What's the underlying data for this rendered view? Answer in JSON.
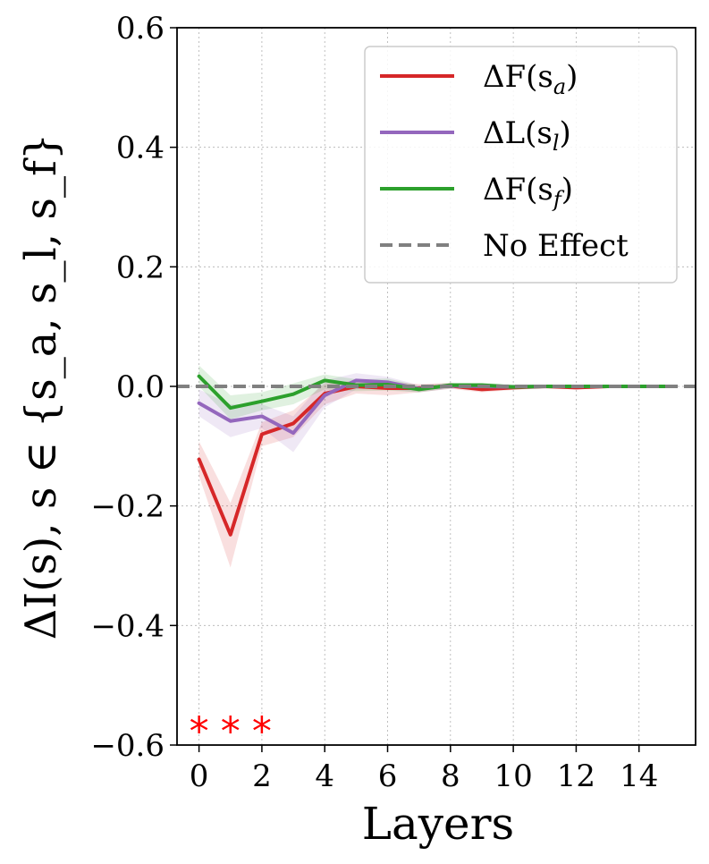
{
  "chart_data": {
    "type": "line",
    "xlabel": "Layers",
    "ylabel": "ΔI(s),  s ∈ {s_a, s_l, s_f}",
    "xlim": [
      -0.7,
      15.8
    ],
    "ylim": [
      -0.6,
      0.6
    ],
    "xticks": [
      0,
      2,
      4,
      6,
      8,
      10,
      12,
      14
    ],
    "yticks": [
      -0.6,
      -0.4,
      -0.2,
      0.0,
      0.2,
      0.4,
      0.6
    ],
    "ytick_labels": [
      "−0.6",
      "−0.4",
      "−0.2",
      "0.0",
      "0.2",
      "0.4",
      "0.6"
    ],
    "grid": true,
    "legend_position": "top-right",
    "x": [
      0,
      1,
      2,
      3,
      4,
      5,
      6,
      7,
      8,
      9,
      10,
      11,
      12,
      13,
      14,
      15
    ],
    "series": [
      {
        "name": "ΔF(s_a)",
        "label_main": "ΔF(s",
        "label_sub": "a",
        "color": "#d62728",
        "values": [
          -0.122,
          -0.248,
          -0.08,
          -0.062,
          -0.012,
          0.0,
          -0.003,
          -0.003,
          0.001,
          -0.005,
          -0.002,
          0.0,
          -0.002,
          0.0,
          0.0,
          0.0
        ],
        "lower": [
          -0.15,
          -0.303,
          -0.1,
          -0.085,
          -0.03,
          -0.012,
          -0.015,
          -0.01,
          -0.004,
          -0.01,
          -0.006,
          -0.003,
          -0.005,
          -0.003,
          -0.003,
          -0.003
        ],
        "upper": [
          -0.092,
          -0.195,
          -0.06,
          -0.04,
          0.005,
          0.01,
          0.008,
          0.004,
          0.006,
          0.0,
          0.002,
          0.003,
          0.001,
          0.003,
          0.003,
          0.003
        ]
      },
      {
        "name": "ΔL(s_l)",
        "label_main": "ΔL(s",
        "label_sub": "l",
        "color": "#9467bd",
        "values": [
          -0.028,
          -0.058,
          -0.05,
          -0.078,
          -0.015,
          0.01,
          0.007,
          -0.004,
          0.001,
          0.0,
          -0.001,
          0.0,
          0.0,
          0.0,
          0.0,
          0.0
        ],
        "lower": [
          -0.05,
          -0.085,
          -0.07,
          -0.11,
          -0.035,
          -0.005,
          -0.005,
          -0.01,
          -0.004,
          -0.004,
          -0.004,
          -0.003,
          -0.003,
          -0.003,
          -0.003,
          -0.003
        ],
        "upper": [
          -0.005,
          -0.03,
          -0.03,
          -0.05,
          0.01,
          0.022,
          0.016,
          0.002,
          0.005,
          0.004,
          0.003,
          0.003,
          0.003,
          0.003,
          0.003,
          0.003
        ]
      },
      {
        "name": "ΔF(s_f)",
        "label_main": "ΔF(s",
        "label_sub": "f",
        "color": "#2ca02c",
        "values": [
          0.017,
          -0.036,
          -0.025,
          -0.013,
          0.01,
          0.002,
          0.003,
          -0.005,
          0.002,
          0.002,
          -0.001,
          0.0,
          0.0,
          0.0,
          0.0,
          0.0
        ],
        "lower": [
          0.0,
          -0.055,
          -0.04,
          -0.03,
          -0.005,
          -0.008,
          -0.007,
          -0.01,
          -0.003,
          -0.002,
          -0.004,
          -0.003,
          -0.003,
          -0.003,
          -0.003,
          -0.003
        ],
        "upper": [
          0.035,
          -0.015,
          -0.01,
          0.005,
          0.02,
          0.012,
          0.013,
          0.001,
          0.006,
          0.006,
          0.003,
          0.003,
          0.003,
          0.003,
          0.003,
          0.003
        ]
      }
    ],
    "reference_line": {
      "name": "No Effect",
      "y": 0.0,
      "color": "#808080",
      "style": "dashed"
    },
    "significance_markers": {
      "text": "*",
      "color": "#ff0000",
      "x": [
        0,
        1,
        2
      ],
      "y": -0.56
    }
  }
}
